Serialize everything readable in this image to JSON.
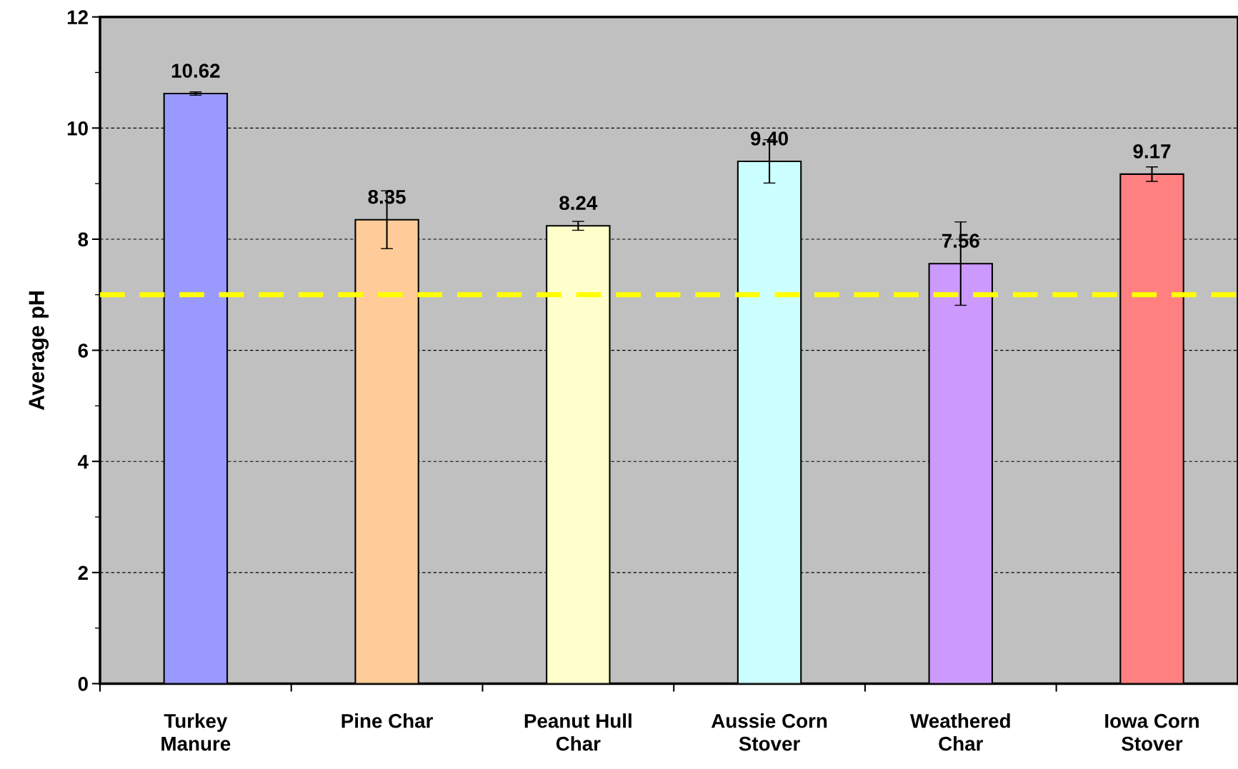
{
  "chart_data": {
    "type": "bar",
    "ylabel": "Average pH",
    "categories": [
      "Turkey\nManure",
      "Pine Char",
      "Peanut Hull\nChar",
      "Aussie Corn\nStover",
      "Weathered\nChar",
      "Iowa Corn\nStover"
    ],
    "values": [
      10.62,
      8.35,
      8.24,
      9.4,
      7.56,
      9.17
    ],
    "colors": [
      "#9999ff",
      "#ffcc99",
      "#ffffcc",
      "#ccffff",
      "#cc99ff",
      "#ff8080"
    ],
    "errors": [
      0.03,
      0.52,
      0.08,
      0.39,
      0.75,
      0.13
    ],
    "value_labels": [
      "10.62",
      "8.35",
      "8.24",
      "9.40",
      "7.56",
      "9.17"
    ],
    "ylim": [
      0,
      12
    ],
    "yticks": [
      0,
      2,
      4,
      6,
      8,
      10,
      12
    ],
    "grid": "y",
    "ref_lines": [
      {
        "axis": "y",
        "value": 7,
        "color": "#ffff00",
        "line_style": "dashed"
      }
    ]
  }
}
